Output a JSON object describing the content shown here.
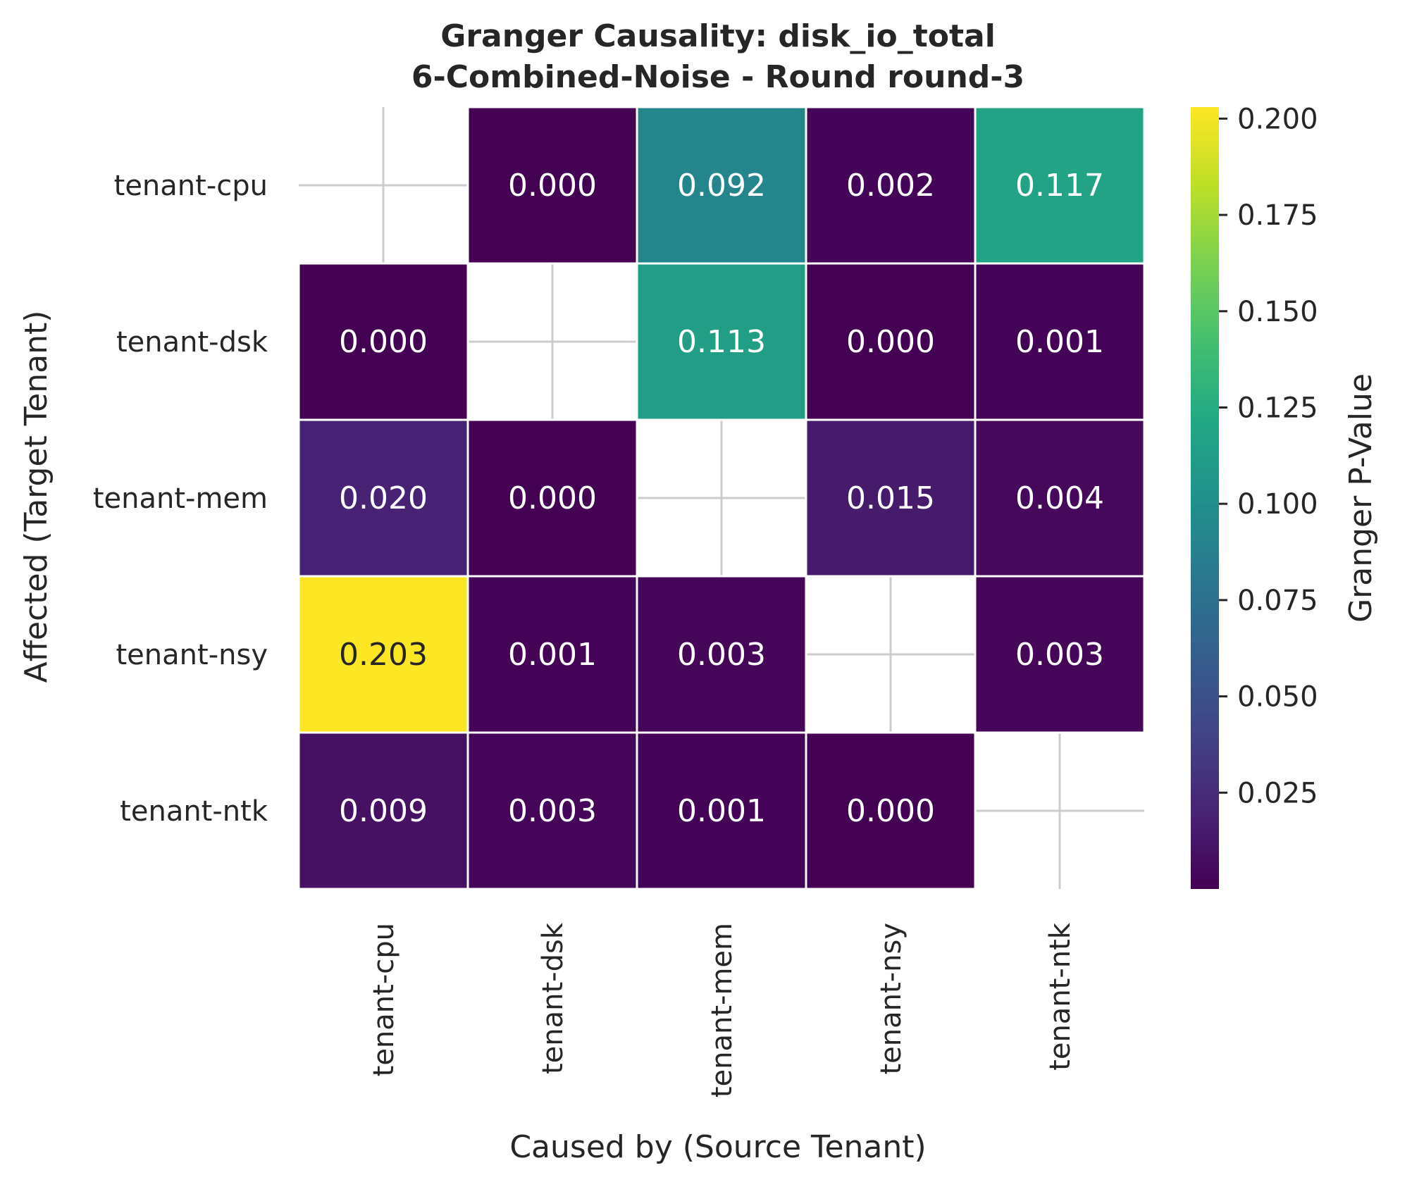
{
  "chart_data": {
    "type": "heatmap",
    "title": "Granger Causality: disk_io_total",
    "subtitle": "6-Combined-Noise - Round round-3",
    "xlabel": "Caused by (Source Tenant)",
    "ylabel": "Affected (Target Tenant)",
    "x_categories": [
      "tenant-cpu",
      "tenant-dsk",
      "tenant-mem",
      "tenant-nsy",
      "tenant-ntk"
    ],
    "y_categories": [
      "tenant-cpu",
      "tenant-dsk",
      "tenant-mem",
      "tenant-nsy",
      "tenant-ntk"
    ],
    "values": [
      [
        null,
        0.0,
        0.092,
        0.002,
        0.117
      ],
      [
        0.0,
        null,
        0.113,
        0.0,
        0.001
      ],
      [
        0.02,
        0.0,
        null,
        0.015,
        0.004
      ],
      [
        0.203,
        0.001,
        0.003,
        null,
        0.003
      ],
      [
        0.009,
        0.003,
        0.001,
        0.0,
        null
      ]
    ],
    "cell_labels": [
      [
        "",
        "0.000",
        "0.092",
        "0.002",
        "0.117"
      ],
      [
        "0.000",
        "",
        "0.113",
        "0.000",
        "0.001"
      ],
      [
        "0.020",
        "0.000",
        "",
        "0.015",
        "0.004"
      ],
      [
        "0.203",
        "0.001",
        "0.003",
        "",
        "0.003"
      ],
      [
        "0.009",
        "0.003",
        "0.001",
        "0.000",
        ""
      ]
    ],
    "colormap": "viridis",
    "color_range": [
      0.0,
      0.203
    ],
    "colorbar": {
      "label": "Granger P-Value",
      "ticks": [
        0.025,
        0.05,
        0.075,
        0.1,
        0.125,
        0.15,
        0.175,
        0.2
      ],
      "tick_labels": [
        "0.025",
        "0.050",
        "0.075",
        "0.100",
        "0.125",
        "0.150",
        "0.175",
        "0.200"
      ]
    },
    "grid": true,
    "legend": "colorbar-right"
  }
}
